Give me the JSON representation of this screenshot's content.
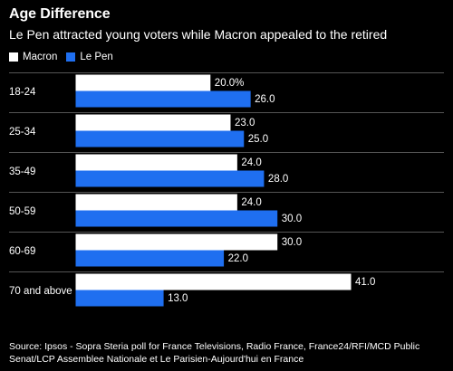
{
  "title": "Age Difference",
  "subtitle": "Le Pen attracted young voters while Macron appealed to the retired",
  "legend": [
    {
      "label": "Macron",
      "color": "#ffffff"
    },
    {
      "label": "Le Pen",
      "color": "#1f6ff0"
    }
  ],
  "source": "Source: Ipsos - Sopra Steria poll for France Televisions, Radio France, France24/RFI/MCD Public Senat/LCP Assemblee Nationale et Le Parisien-Aujourd'hui en France",
  "chart_data": {
    "type": "bar",
    "orientation": "horizontal",
    "categories": [
      "18-24",
      "25-34",
      "35-49",
      "50-59",
      "60-69",
      "70 and above"
    ],
    "series": [
      {
        "name": "Macron",
        "color": "#ffffff",
        "values": [
          20.0,
          23.0,
          24.0,
          24.0,
          30.0,
          41.0
        ],
        "labels": [
          "20.0%",
          "23.0",
          "24.0",
          "24.0",
          "30.0",
          "41.0"
        ]
      },
      {
        "name": "Le Pen",
        "color": "#1f6ff0",
        "values": [
          26.0,
          25.0,
          28.0,
          30.0,
          22.0,
          13.0
        ],
        "labels": [
          "26.0",
          "25.0",
          "28.0",
          "30.0",
          "22.0",
          "13.0"
        ]
      }
    ],
    "xlim": [
      0,
      41
    ],
    "grid": "horizontal separators",
    "legend_position": "top-left"
  }
}
